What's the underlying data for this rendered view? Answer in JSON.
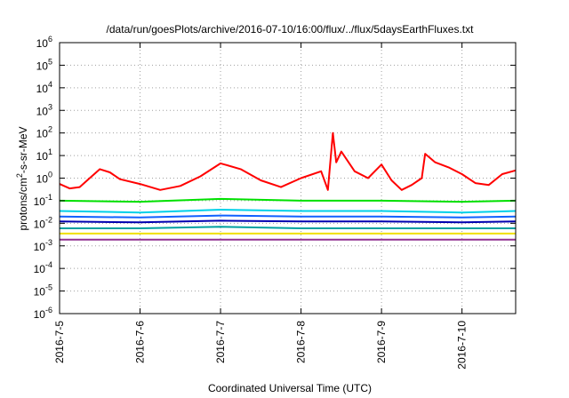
{
  "chart_data": {
    "type": "line",
    "title": "/data/run/goesPlots/archive/2016-07-10/16:00/flux/../flux/5daysEarthFluxes.txt",
    "xlabel": "Coordinated Universal Time (UTC)",
    "ylabel": "protons/cm²-s-sr-MeV",
    "ylabel_parts": {
      "base": "protons/cm",
      "sup": "2",
      "rest": "-s-sr-MeV"
    },
    "y_scale": "log",
    "ylim_exp": [
      -6,
      6
    ],
    "y_ticks": [
      {
        "base": "10",
        "exp": "-6",
        "value": 1e-06
      },
      {
        "base": "10",
        "exp": "-5",
        "value": 1e-05
      },
      {
        "base": "10",
        "exp": "-4",
        "value": 0.0001
      },
      {
        "base": "10",
        "exp": "-3",
        "value": 0.001
      },
      {
        "base": "10",
        "exp": "-2",
        "value": 0.01
      },
      {
        "base": "10",
        "exp": "-1",
        "value": 0.1
      },
      {
        "base": "10",
        "exp": "0",
        "value": 1
      },
      {
        "base": "10",
        "exp": "1",
        "value": 10
      },
      {
        "base": "10",
        "exp": "2",
        "value": 100
      },
      {
        "base": "10",
        "exp": "3",
        "value": 1000
      },
      {
        "base": "10",
        "exp": "4",
        "value": 10000
      },
      {
        "base": "10",
        "exp": "5",
        "value": 100000
      },
      {
        "base": "10",
        "exp": "6",
        "value": 1000000
      }
    ],
    "xlim": [
      "2016-07-05T00:00",
      "2016-07-10T16:00"
    ],
    "x_ticks": [
      "2016-7-5",
      "2016-7-6",
      "2016-7-7",
      "2016-7-8",
      "2016-7-9",
      "2016-7-10"
    ],
    "grid": true,
    "legend": "none",
    "series": [
      {
        "color": "#ff0000",
        "points": [
          [
            "2016-07-05T00:00",
            0.55
          ],
          [
            "2016-07-05T03:00",
            0.35
          ],
          [
            "2016-07-05T06:00",
            0.4
          ],
          [
            "2016-07-05T09:00",
            1.0
          ],
          [
            "2016-07-05T12:00",
            2.5
          ],
          [
            "2016-07-05T15:00",
            1.8
          ],
          [
            "2016-07-05T18:00",
            0.9
          ],
          [
            "2016-07-06T00:00",
            0.55
          ],
          [
            "2016-07-06T06:00",
            0.3
          ],
          [
            "2016-07-06T12:00",
            0.45
          ],
          [
            "2016-07-06T18:00",
            1.2
          ],
          [
            "2016-07-07T00:00",
            4.5
          ],
          [
            "2016-07-07T06:00",
            2.5
          ],
          [
            "2016-07-07T12:00",
            0.8
          ],
          [
            "2016-07-07T18:00",
            0.4
          ],
          [
            "2016-07-08T00:00",
            1.0
          ],
          [
            "2016-07-08T06:00",
            2.0
          ],
          [
            "2016-07-08T08:00",
            0.3
          ],
          [
            "2016-07-08T09:30",
            100
          ],
          [
            "2016-07-08T10:30",
            5
          ],
          [
            "2016-07-08T12:00",
            15
          ],
          [
            "2016-07-08T16:00",
            2
          ],
          [
            "2016-07-08T20:00",
            1.0
          ],
          [
            "2016-07-09T00:00",
            4.0
          ],
          [
            "2016-07-09T03:00",
            0.8
          ],
          [
            "2016-07-09T06:00",
            0.3
          ],
          [
            "2016-07-09T09:00",
            0.5
          ],
          [
            "2016-07-09T12:00",
            1.0
          ],
          [
            "2016-07-09T13:00",
            12
          ],
          [
            "2016-07-09T16:00",
            5
          ],
          [
            "2016-07-09T20:00",
            3
          ],
          [
            "2016-07-10T00:00",
            1.5
          ],
          [
            "2016-07-10T04:00",
            0.6
          ],
          [
            "2016-07-10T08:00",
            0.5
          ],
          [
            "2016-07-10T12:00",
            1.5
          ],
          [
            "2016-07-10T16:00",
            2.2
          ]
        ]
      },
      {
        "color": "#00e000",
        "points": [
          [
            "2016-07-05T00:00",
            0.1
          ],
          [
            "2016-07-06T00:00",
            0.09
          ],
          [
            "2016-07-07T00:00",
            0.12
          ],
          [
            "2016-07-08T00:00",
            0.1
          ],
          [
            "2016-07-09T00:00",
            0.1
          ],
          [
            "2016-07-10T00:00",
            0.09
          ],
          [
            "2016-07-10T16:00",
            0.1
          ]
        ]
      },
      {
        "color": "#00d0e8",
        "points": [
          [
            "2016-07-05T00:00",
            0.035
          ],
          [
            "2016-07-06T00:00",
            0.03
          ],
          [
            "2016-07-07T00:00",
            0.04
          ],
          [
            "2016-07-08T00:00",
            0.035
          ],
          [
            "2016-07-09T00:00",
            0.035
          ],
          [
            "2016-07-10T00:00",
            0.03
          ],
          [
            "2016-07-10T16:00",
            0.035
          ]
        ]
      },
      {
        "color": "#1060ff",
        "points": [
          [
            "2016-07-05T00:00",
            0.02
          ],
          [
            "2016-07-06T00:00",
            0.018
          ],
          [
            "2016-07-07T00:00",
            0.022
          ],
          [
            "2016-07-08T00:00",
            0.02
          ],
          [
            "2016-07-09T00:00",
            0.02
          ],
          [
            "2016-07-10T00:00",
            0.018
          ],
          [
            "2016-07-10T16:00",
            0.02
          ]
        ]
      },
      {
        "color": "#0000b0",
        "points": [
          [
            "2016-07-05T00:00",
            0.012
          ],
          [
            "2016-07-06T00:00",
            0.011
          ],
          [
            "2016-07-07T00:00",
            0.013
          ],
          [
            "2016-07-08T00:00",
            0.012
          ],
          [
            "2016-07-09T00:00",
            0.012
          ],
          [
            "2016-07-10T00:00",
            0.011
          ],
          [
            "2016-07-10T16:00",
            0.012
          ]
        ]
      },
      {
        "color": "#00a0a0",
        "points": [
          [
            "2016-07-05T00:00",
            0.006
          ],
          [
            "2016-07-06T00:00",
            0.006
          ],
          [
            "2016-07-07T00:00",
            0.007
          ],
          [
            "2016-07-08T00:00",
            0.006
          ],
          [
            "2016-07-09T00:00",
            0.006
          ],
          [
            "2016-07-10T00:00",
            0.006
          ],
          [
            "2016-07-10T16:00",
            0.006
          ]
        ]
      },
      {
        "color": "#f0e000",
        "points": [
          [
            "2016-07-05T00:00",
            0.0035
          ],
          [
            "2016-07-06T00:00",
            0.0035
          ],
          [
            "2016-07-07T00:00",
            0.0035
          ],
          [
            "2016-07-08T00:00",
            0.0035
          ],
          [
            "2016-07-09T00:00",
            0.0035
          ],
          [
            "2016-07-10T00:00",
            0.0035
          ],
          [
            "2016-07-10T16:00",
            0.0035
          ]
        ]
      },
      {
        "color": "#903090",
        "points": [
          [
            "2016-07-05T00:00",
            0.0019
          ],
          [
            "2016-07-06T00:00",
            0.0019
          ],
          [
            "2016-07-07T00:00",
            0.0019
          ],
          [
            "2016-07-08T00:00",
            0.0019
          ],
          [
            "2016-07-09T00:00",
            0.0019
          ],
          [
            "2016-07-10T00:00",
            0.0019
          ],
          [
            "2016-07-10T16:00",
            0.0019
          ]
        ]
      }
    ]
  }
}
